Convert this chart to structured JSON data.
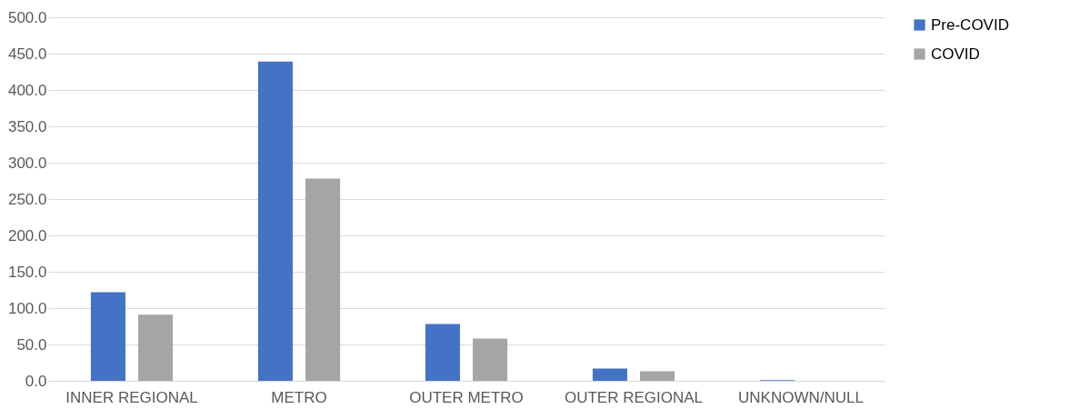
{
  "chart_data": {
    "type": "bar",
    "categories": [
      "INNER REGIONAL",
      "METRO",
      "OUTER METRO",
      "OUTER REGIONAL",
      "UNKNOWN/NULL"
    ],
    "series": [
      {
        "name": "Pre-COVID",
        "color": "#4472c4",
        "values": [
          122,
          439,
          78,
          17,
          1
        ]
      },
      {
        "name": "COVID",
        "color": "#a5a5a5",
        "values": [
          91,
          278,
          58,
          13,
          0
        ]
      }
    ],
    "ylim": [
      0,
      500
    ],
    "yticks": [
      {
        "value": 0,
        "label": "0.0"
      },
      {
        "value": 50,
        "label": "50.0"
      },
      {
        "value": 100,
        "label": "100.0"
      },
      {
        "value": 150,
        "label": "150.0"
      },
      {
        "value": 200,
        "label": "200.0"
      },
      {
        "value": 250,
        "label": "250.0"
      },
      {
        "value": 300,
        "label": "300.0"
      },
      {
        "value": 350,
        "label": "350.0"
      },
      {
        "value": 400,
        "label": "400.0"
      },
      {
        "value": 450,
        "label": "450.0"
      },
      {
        "value": 500,
        "label": "500.0"
      }
    ],
    "grid": "y",
    "legend": "right"
  }
}
